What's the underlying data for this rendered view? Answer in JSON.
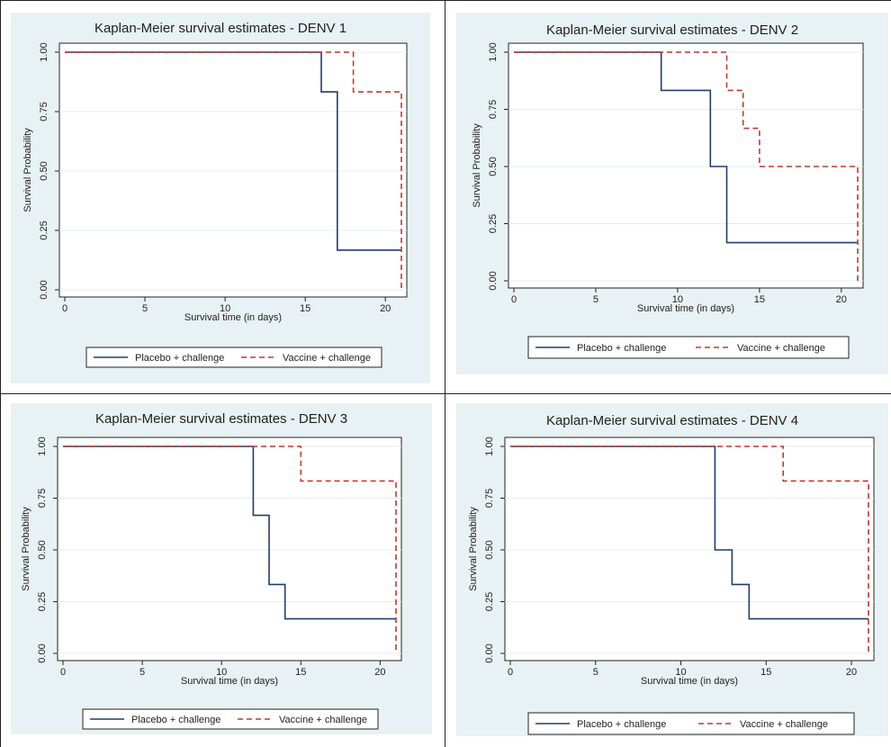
{
  "colors": {
    "background": "#e8f1f3",
    "plot_area": "#ffffff",
    "gridline": "#e4edf0",
    "placebo": "#1f3d6e",
    "vaccine": "#c0392b"
  },
  "chart_data": [
    {
      "type": "line",
      "step": true,
      "title": "Kaplan-Meier survival estimates - DENV 1",
      "xlabel": "Survival time (in days)",
      "ylabel": "Survival Probability",
      "xlim": [
        0,
        21
      ],
      "ylim": [
        0,
        1
      ],
      "xticks": [
        "0",
        "5",
        "10",
        "15",
        "20"
      ],
      "yticks": [
        "0.00",
        "0.25",
        "0.50",
        "0.75",
        "1.00"
      ],
      "grid": true,
      "legend": "bottom",
      "series": [
        {
          "name": "Placebo + challenge",
          "style": "solid",
          "x": [
            0,
            16,
            16,
            17,
            17,
            21
          ],
          "y": [
            1,
            1,
            0.833,
            0.833,
            0.167,
            0.167
          ]
        },
        {
          "name": "Vaccine + challenge",
          "style": "dashed",
          "x": [
            0,
            18,
            18,
            21,
            21
          ],
          "y": [
            1,
            1,
            0.833,
            0.833,
            0
          ]
        }
      ]
    },
    {
      "type": "line",
      "step": true,
      "title": "Kaplan-Meier survival estimates - DENV 2",
      "xlabel": "Survival time (in days)",
      "ylabel": "Survival Probability",
      "xlim": [
        0,
        21
      ],
      "ylim": [
        0,
        1
      ],
      "xticks": [
        "0",
        "5",
        "10",
        "15",
        "20"
      ],
      "yticks": [
        "0.00",
        "0.25",
        "0.50",
        "0.75",
        "1.00"
      ],
      "grid": true,
      "legend": "bottom",
      "series": [
        {
          "name": "Placebo + challenge",
          "style": "solid",
          "x": [
            0,
            9,
            9,
            12,
            12,
            13,
            13,
            21
          ],
          "y": [
            1,
            1,
            0.833,
            0.833,
            0.5,
            0.5,
            0.167,
            0.167
          ]
        },
        {
          "name": "Vaccine + challenge",
          "style": "dashed",
          "x": [
            0,
            13,
            13,
            14,
            14,
            15,
            15,
            21,
            21
          ],
          "y": [
            1,
            1,
            0.833,
            0.833,
            0.667,
            0.667,
            0.5,
            0.5,
            0
          ]
        }
      ]
    },
    {
      "type": "line",
      "step": true,
      "title": "Kaplan-Meier survival estimates - DENV 3",
      "xlabel": "Survival time (in days)",
      "ylabel": "Survival Probability",
      "xlim": [
        0,
        21
      ],
      "ylim": [
        0,
        1
      ],
      "xticks": [
        "0",
        "5",
        "10",
        "15",
        "20"
      ],
      "yticks": [
        "0.00",
        "0.25",
        "0.50",
        "0.75",
        "1.00"
      ],
      "grid": true,
      "legend": "bottom",
      "series": [
        {
          "name": "Placebo + challenge",
          "style": "solid",
          "x": [
            0,
            12,
            12,
            13,
            13,
            14,
            14,
            21
          ],
          "y": [
            1,
            1,
            0.667,
            0.667,
            0.333,
            0.333,
            0.167,
            0.167
          ]
        },
        {
          "name": "Vaccine + challenge",
          "style": "dashed",
          "x": [
            0,
            15,
            15,
            21,
            21
          ],
          "y": [
            1,
            1,
            0.833,
            0.833,
            0
          ]
        }
      ]
    },
    {
      "type": "line",
      "step": true,
      "title": "Kaplan-Meier survival estimates - DENV 4",
      "xlabel": "Survival time (in days)",
      "ylabel": "Survival Probability",
      "xlim": [
        0,
        21
      ],
      "ylim": [
        0,
        1
      ],
      "xticks": [
        "0",
        "5",
        "10",
        "15",
        "20"
      ],
      "yticks": [
        "0.00",
        "0.25",
        "0.50",
        "0.75",
        "1.00"
      ],
      "grid": true,
      "legend": "bottom",
      "series": [
        {
          "name": "Placebo + challenge",
          "style": "solid",
          "x": [
            0,
            12,
            12,
            13,
            13,
            14,
            14,
            21
          ],
          "y": [
            1,
            1,
            0.5,
            0.5,
            0.333,
            0.333,
            0.167,
            0.167
          ]
        },
        {
          "name": "Vaccine + challenge",
          "style": "dashed",
          "x": [
            0,
            16,
            16,
            21,
            21
          ],
          "y": [
            1,
            1,
            0.833,
            0.833,
            0
          ]
        }
      ]
    }
  ]
}
